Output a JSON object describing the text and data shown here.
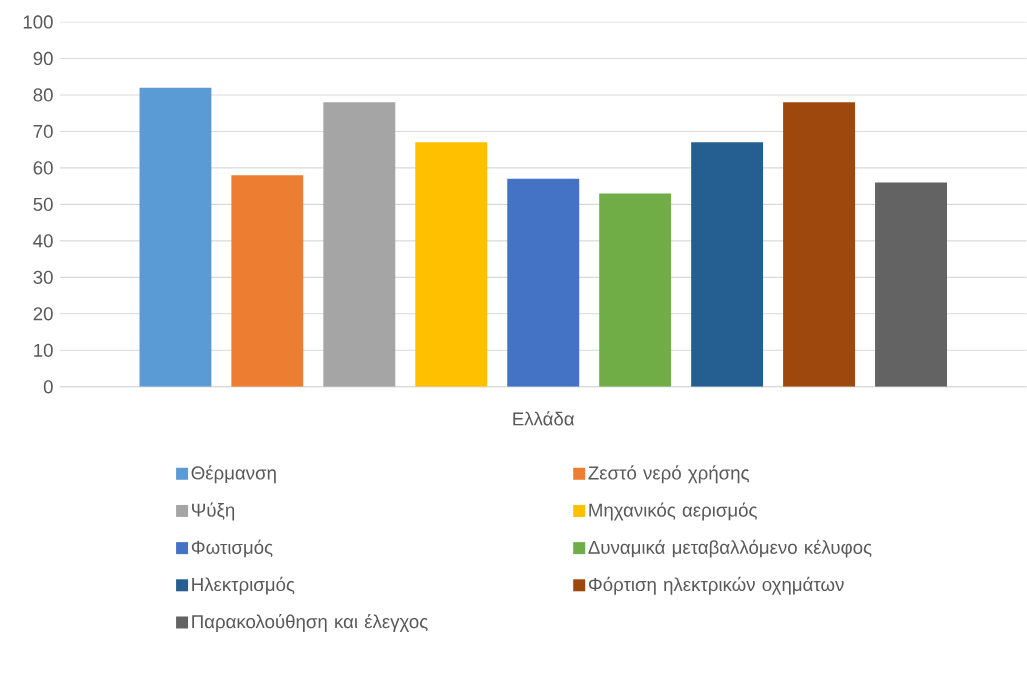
{
  "chart_data": {
    "type": "bar",
    "categories": [
      "Ελλάδα"
    ],
    "series": [
      {
        "name": "Θέρμανση",
        "color": "#5b9bd5",
        "values": [
          82
        ]
      },
      {
        "name": "Ζεστό νερό χρήσης",
        "color": "#ed7d31",
        "values": [
          58
        ]
      },
      {
        "name": "Ψύξη",
        "color": "#a5a5a5",
        "values": [
          78
        ]
      },
      {
        "name": "Μηχανικός αερισμός",
        "color": "#ffc000",
        "values": [
          67
        ]
      },
      {
        "name": "Φωτισμός",
        "color": "#4472c4",
        "values": [
          57
        ]
      },
      {
        "name": "Δυναμικά μεταβαλλόμενο κέλυφος",
        "color": "#70ad47",
        "values": [
          53
        ]
      },
      {
        "name": "Ηλεκτρισμός",
        "color": "#255e91",
        "values": [
          67
        ]
      },
      {
        "name": "Φόρτιση ηλεκτρικών οχημάτων",
        "color": "#9e480e",
        "values": [
          78
        ]
      },
      {
        "name": "Παρακολούθηση και έλεγχος",
        "color": "#636363",
        "values": [
          56
        ]
      }
    ],
    "ylim": [
      0,
      100
    ],
    "yticks": [
      0,
      10,
      20,
      30,
      40,
      50,
      60,
      70,
      80,
      90,
      100
    ],
    "grid": "y",
    "legend": "bottom"
  }
}
